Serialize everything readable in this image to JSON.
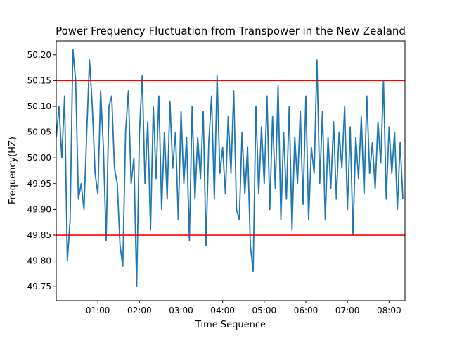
{
  "chart_data": {
    "type": "line",
    "title": "Power Frequency Fluctuation from Transpower in the New Zealand",
    "xlabel": "Time Sequence",
    "ylabel": "Frequency(HZ)",
    "x": [
      0,
      4,
      8,
      12,
      16,
      20,
      24,
      28,
      32,
      36,
      40,
      44,
      48,
      52,
      56,
      60,
      64,
      68,
      72,
      76,
      80,
      84,
      88,
      92,
      96,
      100,
      104,
      108,
      112,
      116,
      120,
      124,
      128,
      132,
      136,
      140,
      144,
      148,
      152,
      156,
      160,
      164,
      168,
      172,
      176,
      180,
      184,
      188,
      192,
      196,
      200,
      204,
      208,
      212,
      216,
      220,
      224,
      228,
      232,
      236,
      240,
      244,
      248,
      252,
      256,
      260,
      264,
      268,
      272,
      276,
      280,
      284,
      288,
      292,
      296,
      300,
      304,
      308,
      312,
      316,
      320,
      324,
      328,
      332,
      336,
      340,
      344,
      348,
      352,
      356,
      360,
      364,
      368,
      372,
      376,
      380,
      384,
      388,
      392,
      396,
      400,
      404,
      408,
      412,
      416,
      420,
      424,
      428,
      432,
      436,
      440,
      444,
      448,
      452,
      456,
      460,
      464,
      468,
      472,
      476,
      480,
      484,
      488,
      492,
      496,
      500
    ],
    "values": [
      50.04,
      50.1,
      50.0,
      50.12,
      49.8,
      49.88,
      50.21,
      50.15,
      49.92,
      49.95,
      49.9,
      50.05,
      50.19,
      50.1,
      49.97,
      49.93,
      50.13,
      50.02,
      49.84,
      50.1,
      50.12,
      49.98,
      49.95,
      49.83,
      49.79,
      50.05,
      50.13,
      49.95,
      50.0,
      49.75,
      50.05,
      50.16,
      49.95,
      50.07,
      49.86,
      50.1,
      49.96,
      50.12,
      49.9,
      50.05,
      49.92,
      50.11,
      49.98,
      50.05,
      49.88,
      50.09,
      49.95,
      50.04,
      49.84,
      50.1,
      49.92,
      50.04,
      49.96,
      50.09,
      49.83,
      50.03,
      50.12,
      49.92,
      50.16,
      49.97,
      50.02,
      49.93,
      50.08,
      49.97,
      50.13,
      49.9,
      49.88,
      50.05,
      49.93,
      50.02,
      49.83,
      49.78,
      50.1,
      49.93,
      50.06,
      49.95,
      50.12,
      49.9,
      50.08,
      49.94,
      50.14,
      49.88,
      50.05,
      49.92,
      50.1,
      49.86,
      50.04,
      49.95,
      50.09,
      49.91,
      50.12,
      49.88,
      50.02,
      49.97,
      50.19,
      49.95,
      50.09,
      49.88,
      50.04,
      49.94,
      50.07,
      49.92,
      50.05,
      49.98,
      50.1,
      49.9,
      50.06,
      49.85,
      50.04,
      49.96,
      50.08,
      49.93,
      50.12,
      49.97,
      50.03,
      49.94,
      50.07,
      49.99,
      50.15,
      49.92,
      50.06,
      49.97,
      50.05,
      49.9,
      50.03,
      49.92
    ],
    "color": "#1f77b4",
    "reference_lines": [
      50.15,
      49.85
    ],
    "reference_color": "#ff0000",
    "xlim": [
      0,
      503
    ],
    "xticks": [
      {
        "value": 60,
        "label": "01:00"
      },
      {
        "value": 120,
        "label": "02:00"
      },
      {
        "value": 180,
        "label": "03:00"
      },
      {
        "value": 240,
        "label": "04:00"
      },
      {
        "value": 300,
        "label": "05:00"
      },
      {
        "value": 360,
        "label": "06:00"
      },
      {
        "value": 420,
        "label": "07:00"
      },
      {
        "value": 480,
        "label": "08:00"
      }
    ],
    "ylim": [
      49.723,
      50.227
    ],
    "yticks": [
      49.75,
      {
        "value": 49.8,
        "label": "49.80"
      },
      49.85,
      {
        "value": 49.9,
        "label": "49.90"
      },
      49.95,
      {
        "value": 50,
        "label": "50.00"
      },
      50.05,
      {
        "value": 50.1,
        "label": "50.10"
      },
      50.15,
      {
        "value": 50.2,
        "label": "50.20"
      }
    ],
    "grid": false
  }
}
